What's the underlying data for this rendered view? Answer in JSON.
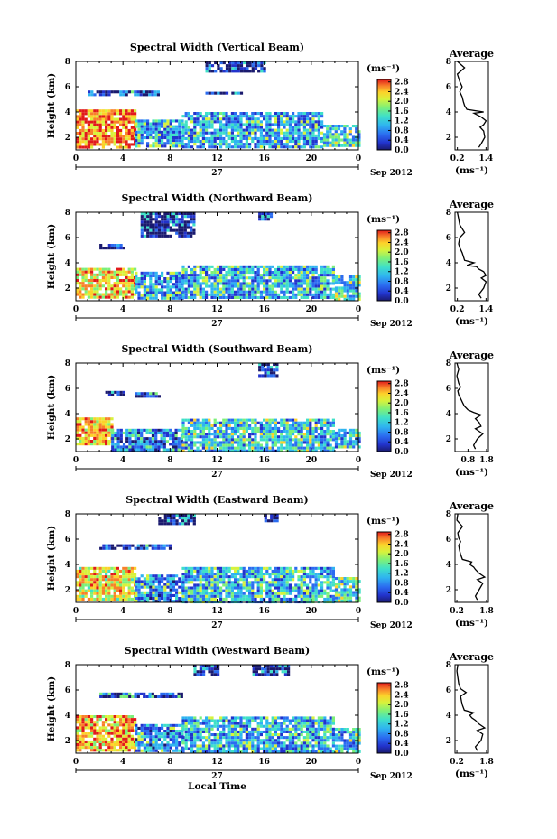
{
  "chart_data": [
    {
      "type": "heatmap",
      "title": "Spectral Width (Vertical Beam)",
      "xlabel": "",
      "ylabel": "Height (km)",
      "xlim": [
        0,
        24
      ],
      "ylim": [
        1,
        8
      ],
      "xticks": [
        "0",
        "4",
        "8",
        "12",
        "16",
        "20",
        "0"
      ],
      "yticks": [
        "2",
        "4",
        "6",
        "8"
      ],
      "date_label": "27",
      "month_label": "Sep 2012",
      "colorbar": {
        "unit": "(ms⁻¹)",
        "ticks": [
          "0.0",
          "0.4",
          "0.8",
          "1.2",
          "1.6",
          "2.0",
          "2.4",
          "2.8"
        ],
        "range": [
          0,
          2.9
        ]
      },
      "regions": [
        {
          "x": [
            0,
            5
          ],
          "y": [
            1.3,
            4.2
          ],
          "value": 2.4
        },
        {
          "x": [
            5,
            9
          ],
          "y": [
            1.2,
            3.4
          ],
          "value": 0.9
        },
        {
          "x": [
            9,
            21
          ],
          "y": [
            1.2,
            4.0
          ],
          "value": 0.9
        },
        {
          "x": [
            21,
            24
          ],
          "y": [
            1.3,
            3.0
          ],
          "value": 1.2
        },
        {
          "x": [
            1,
            7
          ],
          "y": [
            5.4,
            5.7
          ],
          "value": 0.6
        },
        {
          "x": [
            11,
            14
          ],
          "y": [
            5.4,
            5.6
          ],
          "value": 0.4
        },
        {
          "x": [
            11,
            16
          ],
          "y": [
            7.3,
            8.0
          ],
          "value": 0.3
        }
      ],
      "inset": {
        "title": "Average",
        "xlabel": "(ms⁻¹)",
        "xticks": [
          "0.2",
          "1.4"
        ],
        "xlim": [
          0.1,
          1.5
        ],
        "yticks": [
          "2",
          "4",
          "6",
          "8"
        ],
        "ylim": [
          1,
          8
        ],
        "x": [
          1.1,
          1.2,
          1.35,
          1.3,
          1.15,
          1.3,
          1.4,
          1.2,
          1.0,
          0.9,
          1.3,
          0.6,
          0.5,
          0.45,
          0.4,
          0.3,
          0.4,
          0.3,
          0.2,
          0.5,
          0.2
        ],
        "y": [
          1.2,
          1.5,
          2.0,
          2.5,
          2.8,
          3.0,
          3.3,
          3.6,
          3.8,
          3.9,
          4.0,
          4.2,
          4.5,
          4.8,
          5.2,
          5.6,
          6.0,
          6.4,
          7.0,
          7.5,
          8.0
        ]
      }
    },
    {
      "type": "heatmap",
      "title": "Spectral Width (Northward Beam)",
      "xlabel": "",
      "ylabel": "Height (km)",
      "xlim": [
        0,
        24
      ],
      "ylim": [
        1,
        8
      ],
      "xticks": [
        "0",
        "4",
        "8",
        "12",
        "16",
        "20",
        "0"
      ],
      "yticks": [
        "2",
        "4",
        "6",
        "8"
      ],
      "date_label": "27",
      "month_label": "Sep 2012",
      "colorbar": {
        "unit": "(ms⁻¹)",
        "ticks": [
          "0.0",
          "0.4",
          "0.8",
          "1.2",
          "1.6",
          "2.0",
          "2.4",
          "2.8"
        ],
        "range": [
          0,
          2.9
        ]
      },
      "regions": [
        {
          "x": [
            0,
            5
          ],
          "y": [
            1.2,
            3.6
          ],
          "value": 2.1
        },
        {
          "x": [
            5,
            9
          ],
          "y": [
            1.1,
            3.3
          ],
          "value": 0.9
        },
        {
          "x": [
            9,
            22
          ],
          "y": [
            1.2,
            3.8
          ],
          "value": 1.0
        },
        {
          "x": [
            22,
            24
          ],
          "y": [
            1.2,
            3.0
          ],
          "value": 1.2
        },
        {
          "x": [
            2,
            4
          ],
          "y": [
            5.2,
            5.5
          ],
          "value": 0.4
        },
        {
          "x": [
            5.5,
            10
          ],
          "y": [
            6.2,
            8.0
          ],
          "value": 0.2
        },
        {
          "x": [
            15.5,
            16.5
          ],
          "y": [
            7.4,
            8.0
          ],
          "value": 0.3
        }
      ],
      "inset": {
        "title": "Average",
        "xlabel": "(ms⁻¹)",
        "xticks": [
          "0.2",
          "1.4"
        ],
        "xlim": [
          0.1,
          1.5
        ],
        "yticks": [
          "2",
          "4",
          "6",
          "8"
        ],
        "ylim": [
          1,
          8
        ],
        "x": [
          1.2,
          1.1,
          1.3,
          1.4,
          1.2,
          1.4,
          1.3,
          1.1,
          1.0,
          0.6,
          0.9,
          0.5,
          0.45,
          0.4,
          0.3,
          0.25,
          0.3,
          0.5,
          0.3,
          0.25,
          0.2
        ],
        "y": [
          1.2,
          1.5,
          2.0,
          2.5,
          2.8,
          3.0,
          3.3,
          3.5,
          3.7,
          3.8,
          4.0,
          4.2,
          4.5,
          4.8,
          5.2,
          5.5,
          6.0,
          6.4,
          7.0,
          7.5,
          8.0
        ]
      }
    },
    {
      "type": "heatmap",
      "title": "Spectral Width (Southward Beam)",
      "xlabel": "",
      "ylabel": "Height (km)",
      "xlim": [
        0,
        24
      ],
      "ylim": [
        1,
        8
      ],
      "xticks": [
        "0",
        "4",
        "8",
        "12",
        "16",
        "20",
        "0"
      ],
      "yticks": [
        "2",
        "4",
        "6",
        "8"
      ],
      "date_label": "27",
      "month_label": "Sep 2012",
      "colorbar": {
        "unit": "(ms⁻¹)",
        "ticks": [
          "0.0",
          "0.4",
          "0.8",
          "1.2",
          "1.6",
          "2.0",
          "2.4",
          "2.8"
        ],
        "range": [
          0,
          2.9
        ]
      },
      "regions": [
        {
          "x": [
            0,
            3
          ],
          "y": [
            1.5,
            3.7
          ],
          "value": 2.2
        },
        {
          "x": [
            3,
            9
          ],
          "y": [
            1.1,
            2.8
          ],
          "value": 0.7
        },
        {
          "x": [
            9,
            22
          ],
          "y": [
            1.1,
            3.6
          ],
          "value": 1.1
        },
        {
          "x": [
            22,
            24
          ],
          "y": [
            1.3,
            2.8
          ],
          "value": 1.1
        },
        {
          "x": [
            2.5,
            4
          ],
          "y": [
            5.5,
            5.8
          ],
          "value": 0.4
        },
        {
          "x": [
            5,
            7
          ],
          "y": [
            5.4,
            5.7
          ],
          "value": 0.5
        },
        {
          "x": [
            15.5,
            17
          ],
          "y": [
            7.0,
            8.0
          ],
          "value": 0.3
        }
      ],
      "inset": {
        "title": "Average",
        "xlabel": "(ms⁻¹)",
        "xticks": [
          "0.8",
          "1.8"
        ],
        "xlim": [
          0.1,
          1.9
        ],
        "yticks": [
          "2",
          "4",
          "6",
          "8"
        ],
        "ylim": [
          1,
          8
        ],
        "x": [
          1.2,
          1.1,
          1.3,
          1.6,
          1.2,
          1.5,
          1.4,
          1.2,
          1.5,
          1.1,
          0.8,
          0.6,
          0.5,
          0.4,
          0.3,
          0.25,
          0.4,
          0.3,
          0.2,
          0.3,
          0.2
        ],
        "y": [
          1.2,
          1.5,
          2.0,
          2.4,
          2.8,
          3.0,
          3.3,
          3.6,
          3.9,
          4.1,
          4.3,
          4.6,
          4.9,
          5.2,
          5.5,
          5.8,
          6.1,
          6.4,
          7.0,
          7.5,
          8.0
        ]
      }
    },
    {
      "type": "heatmap",
      "title": "Spectral Width (Eastward Beam)",
      "xlabel": "",
      "ylabel": "Height (km)",
      "xlim": [
        0,
        24
      ],
      "ylim": [
        1,
        8
      ],
      "xticks": [
        "0",
        "4",
        "8",
        "12",
        "16",
        "20",
        "0"
      ],
      "yticks": [
        "2",
        "4",
        "6",
        "8"
      ],
      "date_label": "27",
      "month_label": "Sep 2012",
      "colorbar": {
        "unit": "(ms⁻¹)",
        "ticks": [
          "0.0",
          "0.4",
          "0.8",
          "1.2",
          "1.6",
          "2.0",
          "2.4",
          "2.8"
        ],
        "range": [
          0,
          2.9
        ]
      },
      "regions": [
        {
          "x": [
            0,
            5
          ],
          "y": [
            1.2,
            3.8
          ],
          "value": 2.0
        },
        {
          "x": [
            5,
            9
          ],
          "y": [
            1.1,
            3.2
          ],
          "value": 0.8
        },
        {
          "x": [
            9,
            22
          ],
          "y": [
            1.1,
            3.8
          ],
          "value": 1.0
        },
        {
          "x": [
            22,
            24
          ],
          "y": [
            1.2,
            3.0
          ],
          "value": 1.2
        },
        {
          "x": [
            2,
            8
          ],
          "y": [
            5.3,
            5.6
          ],
          "value": 0.5
        },
        {
          "x": [
            7,
            10
          ],
          "y": [
            7.3,
            8.0
          ],
          "value": 0.3
        },
        {
          "x": [
            16,
            17
          ],
          "y": [
            7.4,
            8.0
          ],
          "value": 0.3
        }
      ],
      "inset": {
        "title": "Average",
        "xlabel": "(ms⁻¹)",
        "xticks": [
          "0.2",
          "1.8"
        ],
        "xlim": [
          0.1,
          1.9
        ],
        "yticks": [
          "2",
          "4",
          "6",
          "8"
        ],
        "ylim": [
          1,
          8
        ],
        "x": [
          1.3,
          1.2,
          1.4,
          1.6,
          1.3,
          1.7,
          1.4,
          1.2,
          1.1,
          0.9,
          1.0,
          0.5,
          0.4,
          0.35,
          0.3,
          0.4,
          0.3,
          0.25,
          0.5,
          0.2,
          0.25
        ],
        "y": [
          1.2,
          1.5,
          2.0,
          2.5,
          2.8,
          3.0,
          3.3,
          3.6,
          3.8,
          4.0,
          4.2,
          4.4,
          4.8,
          5.1,
          5.5,
          5.8,
          6.1,
          6.5,
          7.0,
          7.5,
          8.0
        ]
      }
    },
    {
      "type": "heatmap",
      "title": "Spectral Width (Westward Beam)",
      "xlabel": "Local Time",
      "ylabel": "Height (km)",
      "xlim": [
        0,
        24
      ],
      "ylim": [
        1,
        8
      ],
      "xticks": [
        "0",
        "4",
        "8",
        "12",
        "16",
        "20",
        "0"
      ],
      "yticks": [
        "2",
        "4",
        "6",
        "8"
      ],
      "date_label": "27",
      "month_label": "Sep 2012",
      "colorbar": {
        "unit": "(ms⁻¹)",
        "ticks": [
          "0.0",
          "0.4",
          "0.8",
          "1.2",
          "1.6",
          "2.0",
          "2.4",
          "2.8"
        ],
        "range": [
          0,
          2.9
        ]
      },
      "regions": [
        {
          "x": [
            0,
            5
          ],
          "y": [
            1.2,
            4.0
          ],
          "value": 2.2
        },
        {
          "x": [
            5,
            9
          ],
          "y": [
            1.1,
            3.3
          ],
          "value": 0.8
        },
        {
          "x": [
            9,
            22
          ],
          "y": [
            1.1,
            3.9
          ],
          "value": 1.0
        },
        {
          "x": [
            22,
            24
          ],
          "y": [
            1.2,
            3.0
          ],
          "value": 1.1
        },
        {
          "x": [
            2,
            9
          ],
          "y": [
            5.4,
            5.8
          ],
          "value": 0.5
        },
        {
          "x": [
            10,
            12
          ],
          "y": [
            7.2,
            8.0
          ],
          "value": 0.3
        },
        {
          "x": [
            15,
            18
          ],
          "y": [
            7.2,
            8.0
          ],
          "value": 0.3
        }
      ],
      "inset": {
        "title": "Average",
        "xlabel": "(ms⁻¹)",
        "xticks": [
          "0.2",
          "1.8"
        ],
        "xlim": [
          0.1,
          1.9
        ],
        "yticks": [
          "2",
          "4",
          "6",
          "8"
        ],
        "ylim": [
          1,
          8
        ],
        "x": [
          1.3,
          1.2,
          1.5,
          1.6,
          1.3,
          1.7,
          1.4,
          1.2,
          1.0,
          0.9,
          1.1,
          0.6,
          0.5,
          0.45,
          0.4,
          0.7,
          0.4,
          0.3,
          0.25,
          0.2,
          0.25
        ],
        "y": [
          1.2,
          1.5,
          2.0,
          2.5,
          2.8,
          3.0,
          3.3,
          3.6,
          3.8,
          4.0,
          4.2,
          4.4,
          4.8,
          5.1,
          5.5,
          5.8,
          6.1,
          6.5,
          7.0,
          7.5,
          8.0
        ]
      }
    }
  ],
  "colors": {
    "colormap": [
      "#1a1a6e",
      "#2233cc",
      "#2b6cf0",
      "#2fb4f0",
      "#3fe0c8",
      "#7cf07a",
      "#d7f23c",
      "#fcd22a",
      "#f8802a",
      "#e11a1a"
    ]
  }
}
